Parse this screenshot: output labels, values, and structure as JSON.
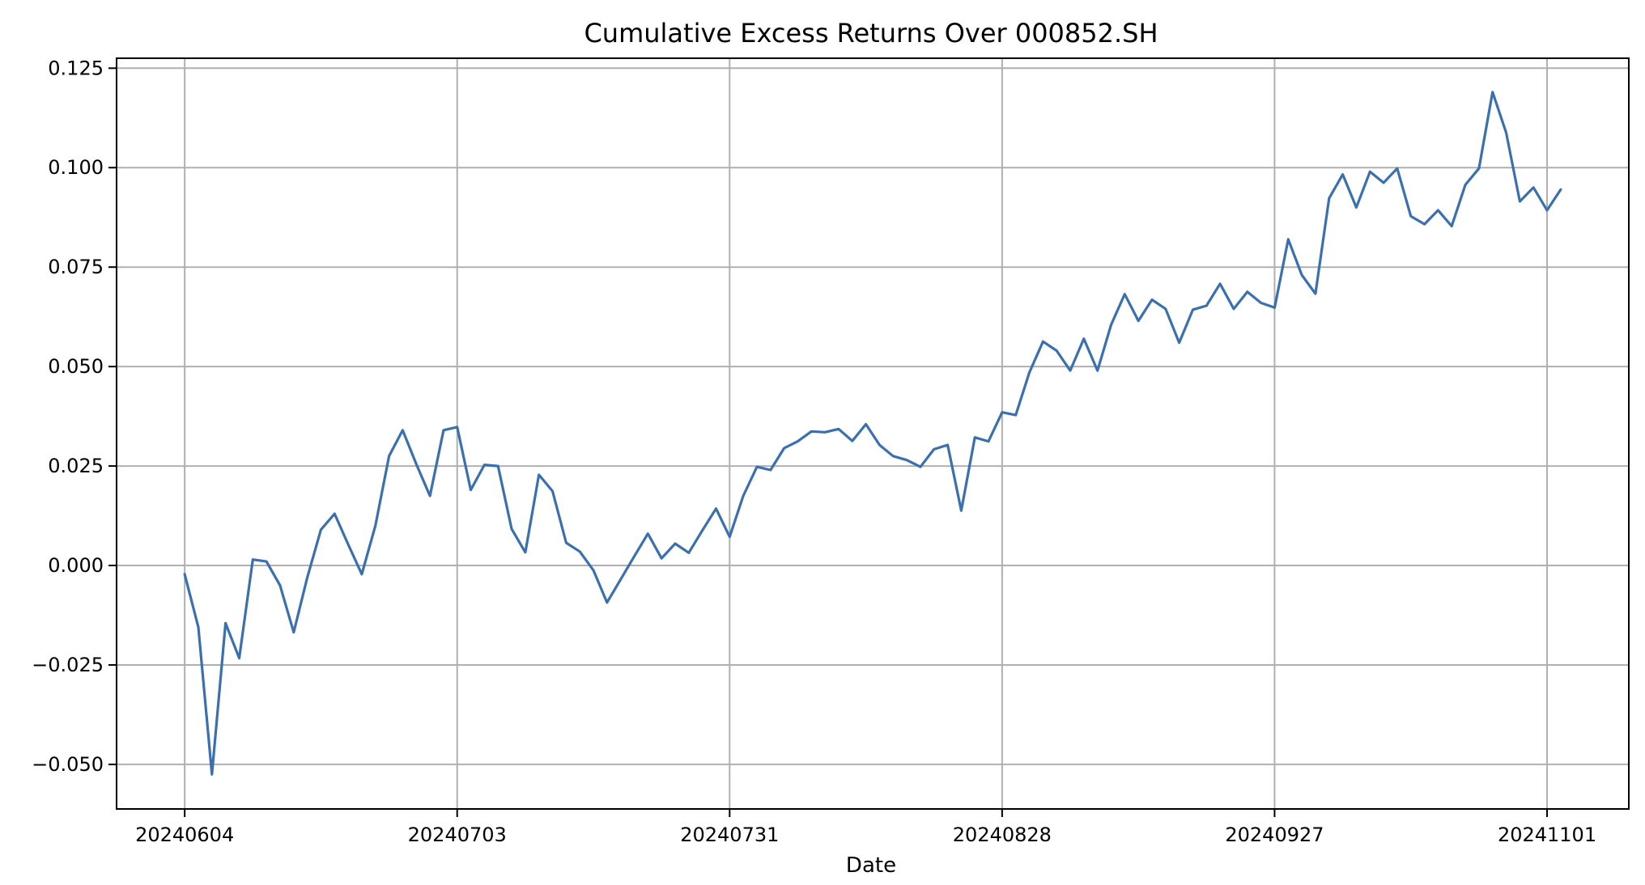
{
  "chart_data": {
    "type": "line",
    "title": "Cumulative Excess Returns Over 000852.SH",
    "xlabel": "Date",
    "ylabel": "",
    "grid": true,
    "legend": "none",
    "x_tick_labels": [
      "20240604",
      "20240703",
      "20240731",
      "20240828",
      "20240927",
      "20241101"
    ],
    "x_tick_index": [
      0,
      20,
      40,
      60,
      80,
      100
    ],
    "y_ticks": [
      -0.05,
      -0.025,
      0.0,
      0.025,
      0.05,
      0.075,
      0.1,
      0.125
    ],
    "y_tick_labels": [
      "−0.050",
      "−0.025",
      "0.000",
      "0.025",
      "0.050",
      "0.075",
      "0.100",
      "0.125"
    ],
    "ylim": [
      -0.0612,
      0.1275
    ],
    "xlim_index": [
      -5,
      106
    ],
    "series": [
      {
        "color": "#3a70b0",
        "values": [
          -0.0022,
          -0.0155,
          -0.0525,
          -0.0145,
          -0.0233,
          0.0015,
          0.001,
          -0.005,
          -0.0168,
          -0.003,
          0.009,
          0.013,
          0.0053,
          -0.0022,
          0.01,
          0.0275,
          0.034,
          0.0255,
          0.0175,
          0.034,
          0.0348,
          0.019,
          0.0253,
          0.025,
          0.0092,
          0.0033,
          0.0228,
          0.0187,
          0.0057,
          0.0035,
          -0.0012,
          -0.0093,
          -0.0035,
          0.0023,
          0.008,
          0.0018,
          0.0055,
          0.0032,
          0.0088,
          0.0143,
          0.0072,
          0.0175,
          0.0248,
          0.024,
          0.0295,
          0.0312,
          0.0337,
          0.0335,
          0.0343,
          0.0313,
          0.0355,
          0.0303,
          0.0275,
          0.0265,
          0.0248,
          0.0292,
          0.0303,
          0.0138,
          0.0322,
          0.0312,
          0.0385,
          0.0378,
          0.0485,
          0.0563,
          0.054,
          0.049,
          0.057,
          0.049,
          0.0605,
          0.0682,
          0.0615,
          0.0668,
          0.0645,
          0.056,
          0.0643,
          0.0653,
          0.0708,
          0.0645,
          0.0688,
          0.066,
          0.0648,
          0.082,
          0.073,
          0.0683,
          0.0923,
          0.0983,
          0.09,
          0.099,
          0.0962,
          0.0998,
          0.0878,
          0.0858,
          0.0893,
          0.0853,
          0.0957,
          0.0998,
          0.119,
          0.1088,
          0.0915,
          0.095,
          0.0893,
          0.0945
        ]
      }
    ]
  }
}
